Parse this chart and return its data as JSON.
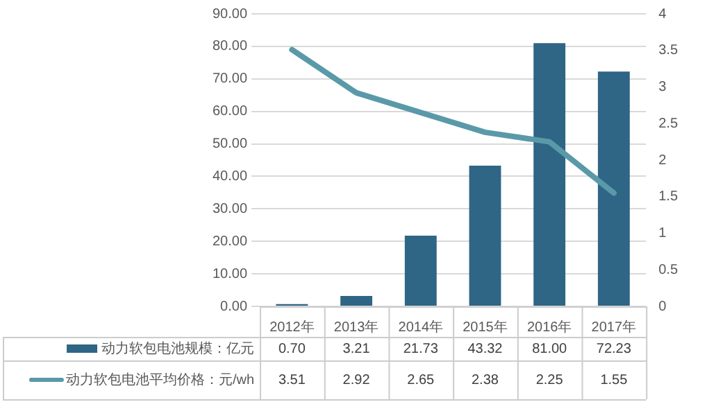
{
  "chart_data": {
    "type": "bar",
    "categories": [
      "2012年",
      "2013年",
      "2014年",
      "2015年",
      "2016年",
      "2017年"
    ],
    "series": [
      {
        "name": "动力软包电池规模：亿元",
        "color": "#2f6585",
        "values": [
          0.7,
          3.21,
          21.73,
          43.32,
          81.0,
          72.23
        ],
        "value_labels": [
          "0.70",
          "3.21",
          "21.73",
          "43.32",
          "81.00",
          "72.23"
        ]
      },
      {
        "name": "动力软包电池平均价格：元/wh",
        "type": "line",
        "axis": "y2",
        "color": "#5a99a8",
        "values": [
          3.51,
          2.92,
          2.65,
          2.38,
          2.25,
          1.55
        ],
        "value_labels": [
          "3.51",
          "2.92",
          "2.65",
          "2.38",
          "2.25",
          "1.55"
        ]
      }
    ],
    "ylim": [
      0,
      90
    ],
    "yticks": [
      {
        "value": 0,
        "label": "0.00"
      },
      {
        "value": 10,
        "label": "10.00"
      },
      {
        "value": 20,
        "label": "20.00"
      },
      {
        "value": 30,
        "label": "30.00"
      },
      {
        "value": 40,
        "label": "40.00"
      },
      {
        "value": 50,
        "label": "50.00"
      },
      {
        "value": 60,
        "label": "60.00"
      },
      {
        "value": 70,
        "label": "70.00"
      },
      {
        "value": 80,
        "label": "80.00"
      },
      {
        "value": 90,
        "label": "90.00"
      }
    ],
    "y2lim": [
      0,
      4
    ],
    "y2ticks": [
      0,
      0.5,
      1,
      1.5,
      2,
      2.5,
      3,
      3.5,
      4
    ],
    "grid": "y",
    "legend": "bottom",
    "marker": "none",
    "line_style": "solid"
  }
}
